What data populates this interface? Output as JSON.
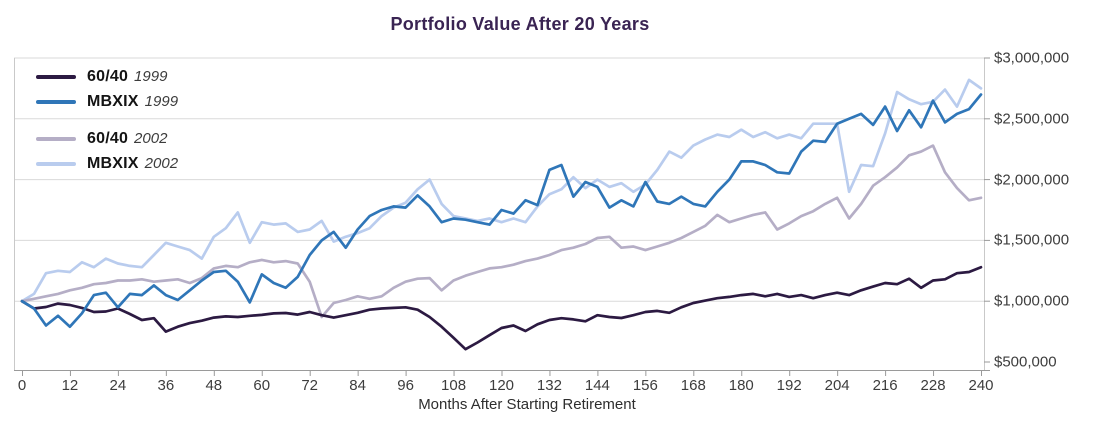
{
  "header": {
    "title": "Portfolio Value After 20 Years"
  },
  "axes": {
    "x_title": "Months After Starting Retirement",
    "x_ticks": [
      {
        "value": 0,
        "label": "0"
      },
      {
        "value": 12,
        "label": "12"
      },
      {
        "value": 24,
        "label": "24"
      },
      {
        "value": 36,
        "label": "36"
      },
      {
        "value": 48,
        "label": "48"
      },
      {
        "value": 60,
        "label": "60"
      },
      {
        "value": 72,
        "label": "72"
      },
      {
        "value": 84,
        "label": "84"
      },
      {
        "value": 96,
        "label": "96"
      },
      {
        "value": 108,
        "label": "108"
      },
      {
        "value": 120,
        "label": "120"
      },
      {
        "value": 132,
        "label": "132"
      },
      {
        "value": 144,
        "label": "144"
      },
      {
        "value": 156,
        "label": "156"
      },
      {
        "value": 168,
        "label": "168"
      },
      {
        "value": 180,
        "label": "180"
      },
      {
        "value": 192,
        "label": "192"
      },
      {
        "value": 204,
        "label": "204"
      },
      {
        "value": 216,
        "label": "216"
      },
      {
        "value": 228,
        "label": "228"
      },
      {
        "value": 240,
        "label": "240"
      }
    ],
    "y_ticks": [
      {
        "value": 3000000,
        "label": "$3,000,000"
      },
      {
        "value": 2500000,
        "label": "$2,500,000"
      },
      {
        "value": 2000000,
        "label": "$2,000,000"
      },
      {
        "value": 1500000,
        "label": "$1,500,000"
      },
      {
        "value": 1000000,
        "label": "$1,000,000"
      },
      {
        "value": 500000,
        "label": "$500,000"
      }
    ]
  },
  "legend": {
    "items": [
      {
        "label": "60/40",
        "year": "1999",
        "color": "#2c1a42"
      },
      {
        "label": "MBXIX",
        "year": "1999",
        "color": "#2f76b8"
      },
      {
        "label": "60/40",
        "year": "2002",
        "color": "#b5aec6"
      },
      {
        "label": "MBXIX",
        "year": "2002",
        "color": "#b9ccee"
      }
    ]
  },
  "colors": {
    "title_text": "#3a2453",
    "tick_text": "#3d3d3d",
    "gridline": "#dadada",
    "plot_border": "#c9c9c9",
    "axis_line": "#9a9a9a"
  },
  "chart_data": {
    "type": "line",
    "title": "Portfolio Value After 20 Years",
    "xlabel": "Months After Starting Retirement",
    "ylabel": "",
    "xlim": [
      0,
      240
    ],
    "ylim": [
      500000,
      3000000
    ],
    "x_tick_interval": 12,
    "y_tick_interval": 500000,
    "grid": "horizontal",
    "legend_position": "top-left",
    "months": [
      0,
      3,
      6,
      9,
      12,
      15,
      18,
      21,
      24,
      27,
      30,
      33,
      36,
      39,
      42,
      45,
      48,
      51,
      54,
      57,
      60,
      63,
      66,
      69,
      72,
      75,
      78,
      81,
      84,
      87,
      90,
      93,
      96,
      99,
      102,
      105,
      108,
      111,
      114,
      117,
      120,
      123,
      126,
      129,
      132,
      135,
      138,
      141,
      144,
      147,
      150,
      153,
      156,
      159,
      162,
      165,
      168,
      171,
      174,
      177,
      180,
      183,
      186,
      189,
      192,
      195,
      198,
      201,
      204,
      207,
      210,
      213,
      216,
      219,
      222,
      225,
      228,
      231,
      234,
      237,
      240
    ],
    "series": [
      {
        "name": "60/40",
        "year": "1999",
        "color": "#2c1a42",
        "values": [
          1000000,
          940000,
          952000,
          980000,
          969000,
          945000,
          911000,
          915000,
          940000,
          895000,
          845000,
          860000,
          750000,
          790000,
          820000,
          840000,
          865000,
          875000,
          870000,
          880000,
          887000,
          900000,
          903000,
          890000,
          911000,
          885000,
          865000,
          885000,
          905000,
          930000,
          940000,
          945000,
          950000,
          930000,
          870000,
          790000,
          700000,
          605000,
          660000,
          720000,
          780000,
          800000,
          755000,
          810000,
          845000,
          860000,
          850000,
          835000,
          885000,
          870000,
          862000,
          885000,
          911000,
          920000,
          905000,
          950000,
          985000,
          1005000,
          1025000,
          1035000,
          1050000,
          1060000,
          1040000,
          1060000,
          1035000,
          1050000,
          1025000,
          1050000,
          1070000,
          1050000,
          1090000,
          1120000,
          1150000,
          1140000,
          1185000,
          1110000,
          1170000,
          1180000,
          1230000,
          1240000,
          1280000
        ]
      },
      {
        "name": "MBXIX",
        "year": "1999",
        "color": "#2f76b8",
        "values": [
          1000000,
          940000,
          800000,
          880000,
          790000,
          900000,
          1050000,
          1070000,
          950000,
          1060000,
          1050000,
          1130000,
          1050000,
          1010000,
          1090000,
          1170000,
          1240000,
          1250000,
          1160000,
          990000,
          1220000,
          1150000,
          1110000,
          1200000,
          1380000,
          1500000,
          1570000,
          1440000,
          1590000,
          1700000,
          1750000,
          1780000,
          1770000,
          1870000,
          1780000,
          1650000,
          1680000,
          1670000,
          1650000,
          1630000,
          1750000,
          1720000,
          1830000,
          1790000,
          2080000,
          2120000,
          1860000,
          1980000,
          1940000,
          1770000,
          1830000,
          1780000,
          1980000,
          1820000,
          1800000,
          1860000,
          1800000,
          1780000,
          1900000,
          2000000,
          2150000,
          2150000,
          2120000,
          2060000,
          2050000,
          2230000,
          2320000,
          2310000,
          2460000,
          2500000,
          2540000,
          2450000,
          2600000,
          2400000,
          2570000,
          2430000,
          2650000,
          2470000,
          2540000,
          2580000,
          2700000
        ]
      },
      {
        "name": "60/40",
        "year": "2002",
        "color": "#b5aec6",
        "values": [
          1000000,
          1020000,
          1040000,
          1060000,
          1090000,
          1110000,
          1140000,
          1150000,
          1170000,
          1170000,
          1180000,
          1160000,
          1170000,
          1180000,
          1150000,
          1190000,
          1270000,
          1290000,
          1280000,
          1320000,
          1340000,
          1320000,
          1330000,
          1310000,
          1160000,
          870000,
          985000,
          1010000,
          1040000,
          1020000,
          1040000,
          1110000,
          1160000,
          1185000,
          1190000,
          1090000,
          1170000,
          1210000,
          1240000,
          1270000,
          1280000,
          1300000,
          1330000,
          1350000,
          1380000,
          1420000,
          1440000,
          1470000,
          1520000,
          1530000,
          1440000,
          1450000,
          1420000,
          1450000,
          1480000,
          1520000,
          1570000,
          1620000,
          1710000,
          1650000,
          1680000,
          1710000,
          1730000,
          1590000,
          1640000,
          1700000,
          1740000,
          1800000,
          1850000,
          1680000,
          1800000,
          1950000,
          2020000,
          2100000,
          2200000,
          2230000,
          2280000,
          2060000,
          1930000,
          1830000,
          1850000
        ]
      },
      {
        "name": "MBXIX",
        "year": "2002",
        "color": "#b9ccee",
        "values": [
          1000000,
          1060000,
          1230000,
          1250000,
          1240000,
          1320000,
          1280000,
          1350000,
          1310000,
          1290000,
          1280000,
          1380000,
          1480000,
          1450000,
          1420000,
          1350000,
          1530000,
          1600000,
          1730000,
          1480000,
          1650000,
          1630000,
          1640000,
          1570000,
          1590000,
          1660000,
          1490000,
          1530000,
          1560000,
          1600000,
          1700000,
          1770000,
          1810000,
          1920000,
          2000000,
          1800000,
          1700000,
          1680000,
          1660000,
          1680000,
          1650000,
          1680000,
          1650000,
          1780000,
          1880000,
          1920000,
          2020000,
          1930000,
          2000000,
          1940000,
          1970000,
          1900000,
          1960000,
          2080000,
          2230000,
          2180000,
          2280000,
          2330000,
          2370000,
          2350000,
          2410000,
          2350000,
          2390000,
          2340000,
          2370000,
          2340000,
          2460000,
          2460000,
          2460000,
          1900000,
          2120000,
          2110000,
          2380000,
          2720000,
          2660000,
          2620000,
          2640000,
          2740000,
          2600000,
          2820000,
          2750000
        ]
      }
    ]
  }
}
